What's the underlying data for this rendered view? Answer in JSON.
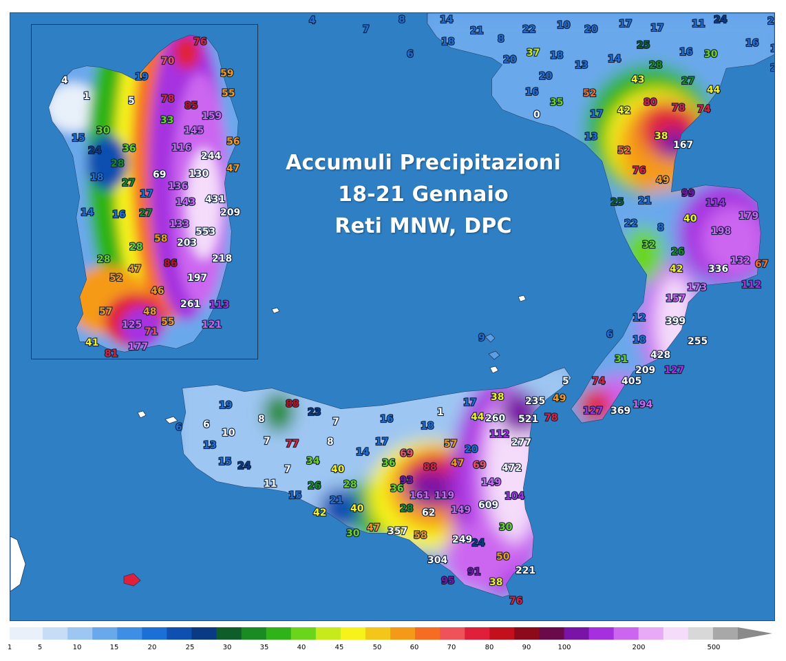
{
  "title": {
    "line1": "Accumuli Precipitazioni",
    "line2": "18-21 Gennaio",
    "line3": "Reti MNW, DPC"
  },
  "legend": {
    "ticks": [
      "1",
      "5",
      "10",
      "15",
      "20",
      "25",
      "30",
      "35",
      "40",
      "45",
      "50",
      "60",
      "70",
      "80",
      "90",
      "100",
      "200",
      "500"
    ]
  },
  "colors": {
    "sea": "#2f7fc4",
    "scale": [
      "#e8f0fa",
      "#c7dcf6",
      "#9ec6f2",
      "#6aa8ec",
      "#3f8ee6",
      "#1c6fd6",
      "#0f4fb0",
      "#0b3a85",
      "#0f5e2a",
      "#1a8a22",
      "#2fb318",
      "#6ad51a",
      "#c6ea1c",
      "#f6f21a",
      "#f5c61a",
      "#f59a18",
      "#f56c22",
      "#f0525a",
      "#e0203a",
      "#c2101c",
      "#8c0a1a",
      "#6a0a4a",
      "#7a14a6",
      "#a630e0",
      "#cc66f0",
      "#e8aaf6",
      "#f4dcfa",
      "#d8d8d8",
      "#a8a8a8"
    ]
  },
  "stations_main": [
    {
      "v": "4",
      "c": "#1c6fd6"
    },
    {
      "v": "7",
      "c": "#1c6fd6"
    },
    {
      "v": "8",
      "c": "#1c6fd6"
    },
    {
      "v": "14",
      "c": "#1c6fd6"
    },
    {
      "v": "21",
      "c": "#1c6fd6"
    },
    {
      "v": "18",
      "c": "#1c6fd6"
    },
    {
      "v": "6",
      "c": "#1c6fd6"
    },
    {
      "v": "8",
      "c": "#1c6fd6"
    },
    {
      "v": "22",
      "c": "#1c6fd6"
    },
    {
      "v": "10",
      "c": "#1c6fd6"
    },
    {
      "v": "17",
      "c": "#1c6fd6"
    },
    {
      "v": "20",
      "c": "#1c6fd6"
    },
    {
      "v": "17",
      "c": "#1c6fd6"
    },
    {
      "v": "11",
      "c": "#1c6fd6"
    },
    {
      "v": "24",
      "c": "#0b3a85"
    },
    {
      "v": "21",
      "c": "#1c6fd6"
    },
    {
      "v": "16",
      "c": "#1c6fd6"
    },
    {
      "v": "17",
      "c": "#1c6fd6"
    },
    {
      "v": "20",
      "c": "#1c6fd6"
    },
    {
      "v": "37",
      "c": "#c6ea1c"
    },
    {
      "v": "18",
      "c": "#1c6fd6"
    },
    {
      "v": "20",
      "c": "#1c6fd6"
    },
    {
      "v": "13",
      "c": "#1c6fd6"
    },
    {
      "v": "14",
      "c": "#1c6fd6"
    },
    {
      "v": "25",
      "c": "#0f5e2a"
    },
    {
      "v": "28",
      "c": "#1a8a22"
    },
    {
      "v": "16",
      "c": "#1c6fd6"
    },
    {
      "v": "30",
      "c": "#6ad51a"
    },
    {
      "v": "20",
      "c": "#1c6fd6"
    },
    {
      "v": "16",
      "c": "#1c6fd6"
    },
    {
      "v": "35",
      "c": "#6ad51a"
    },
    {
      "v": "0",
      "c": "#ffffff"
    },
    {
      "v": "52",
      "c": "#f56c22"
    },
    {
      "v": "43",
      "c": "#f6f21a"
    },
    {
      "v": "27",
      "c": "#1a8a22"
    },
    {
      "v": "44",
      "c": "#f6f21a"
    },
    {
      "v": "80",
      "c": "#e0203a"
    },
    {
      "v": "42",
      "c": "#f6f21a"
    },
    {
      "v": "78",
      "c": "#e0203a"
    },
    {
      "v": "74",
      "c": "#e0203a"
    },
    {
      "v": "17",
      "c": "#1c6fd6"
    },
    {
      "v": "13",
      "c": "#1c6fd6"
    },
    {
      "v": "38",
      "c": "#f6f21a"
    },
    {
      "v": "167",
      "c": "#ffffff"
    },
    {
      "v": "52",
      "c": "#f56c22"
    },
    {
      "v": "76",
      "c": "#e0203a"
    },
    {
      "v": "49",
      "c": "#f59a18"
    },
    {
      "v": "99",
      "c": "#7a14a6"
    },
    {
      "v": "114",
      "c": "#a630e0"
    },
    {
      "v": "25",
      "c": "#0f5e2a"
    },
    {
      "v": "21",
      "c": "#1c6fd6"
    },
    {
      "v": "40",
      "c": "#f6f21a"
    },
    {
      "v": "179",
      "c": "#cc66f0"
    },
    {
      "v": "22",
      "c": "#1c6fd6"
    },
    {
      "v": "8",
      "c": "#1c6fd6"
    },
    {
      "v": "198",
      "c": "#cc66f0"
    },
    {
      "v": "32",
      "c": "#6ad51a"
    },
    {
      "v": "26",
      "c": "#1a8a22"
    },
    {
      "v": "42",
      "c": "#f6f21a"
    },
    {
      "v": "336",
      "c": "#ffffff"
    },
    {
      "v": "132",
      "c": "#cc66f0"
    },
    {
      "v": "67",
      "c": "#f56c22"
    },
    {
      "v": "173",
      "c": "#cc66f0"
    },
    {
      "v": "112",
      "c": "#a630e0"
    },
    {
      "v": "157",
      "c": "#cc66f0"
    },
    {
      "v": "12",
      "c": "#1c6fd6"
    },
    {
      "v": "399",
      "c": "#ffffff"
    },
    {
      "v": "6",
      "c": "#1c6fd6"
    },
    {
      "v": "18",
      "c": "#1c6fd6"
    },
    {
      "v": "255",
      "c": "#ffffff"
    },
    {
      "v": "9",
      "c": "#1c6fd6"
    },
    {
      "v": "428",
      "c": "#ffffff"
    },
    {
      "v": "31",
      "c": "#6ad51a"
    },
    {
      "v": "209",
      "c": "#ffffff"
    },
    {
      "v": "127",
      "c": "#a630e0"
    },
    {
      "v": "5",
      "c": "#ffffff"
    },
    {
      "v": "74",
      "c": "#e0203a"
    },
    {
      "v": "405",
      "c": "#ffffff"
    },
    {
      "v": "127",
      "c": "#a630e0"
    },
    {
      "v": "369",
      "c": "#ffffff"
    },
    {
      "v": "194",
      "c": "#cc66f0"
    },
    {
      "v": "19",
      "c": "#1c6fd6"
    },
    {
      "v": "88",
      "c": "#c2101c"
    },
    {
      "v": "23",
      "c": "#0b3a85"
    },
    {
      "v": "1",
      "c": "#ffffff"
    },
    {
      "v": "17",
      "c": "#1c6fd6"
    },
    {
      "v": "38",
      "c": "#f6f21a"
    },
    {
      "v": "235",
      "c": "#ffffff"
    },
    {
      "v": "49",
      "c": "#f59a18"
    },
    {
      "v": "6",
      "c": "#1c6fd6"
    },
    {
      "v": "6",
      "c": "#ffffff"
    },
    {
      "v": "8",
      "c": "#ffffff"
    },
    {
      "v": "7",
      "c": "#ffffff"
    },
    {
      "v": "16",
      "c": "#1c6fd6"
    },
    {
      "v": "44",
      "c": "#f6f21a"
    },
    {
      "v": "260",
      "c": "#ffffff"
    },
    {
      "v": "521",
      "c": "#ffffff"
    },
    {
      "v": "78",
      "c": "#e0203a"
    },
    {
      "v": "10",
      "c": "#ffffff"
    },
    {
      "v": "18",
      "c": "#1c6fd6"
    },
    {
      "v": "112",
      "c": "#a630e0"
    },
    {
      "v": "13",
      "c": "#1c6fd6"
    },
    {
      "v": "7",
      "c": "#ffffff"
    },
    {
      "v": "77",
      "c": "#e0203a"
    },
    {
      "v": "8",
      "c": "#ffffff"
    },
    {
      "v": "17",
      "c": "#1c6fd6"
    },
    {
      "v": "57",
      "c": "#f59a18"
    },
    {
      "v": "277",
      "c": "#ffffff"
    },
    {
      "v": "20",
      "c": "#1c6fd6"
    },
    {
      "v": "14",
      "c": "#1c6fd6"
    },
    {
      "v": "69",
      "c": "#f0525a"
    },
    {
      "v": "15",
      "c": "#1c6fd6"
    },
    {
      "v": "24",
      "c": "#0b3a85"
    },
    {
      "v": "34",
      "c": "#6ad51a"
    },
    {
      "v": "36",
      "c": "#6ad51a"
    },
    {
      "v": "88",
      "c": "#e0203a"
    },
    {
      "v": "47",
      "c": "#f59a18"
    },
    {
      "v": "69",
      "c": "#f0525a"
    },
    {
      "v": "472",
      "c": "#ffffff"
    },
    {
      "v": "7",
      "c": "#ffffff"
    },
    {
      "v": "40",
      "c": "#f6f21a"
    },
    {
      "v": "93",
      "c": "#7a14a6"
    },
    {
      "v": "11",
      "c": "#ffffff"
    },
    {
      "v": "26",
      "c": "#1a8a22"
    },
    {
      "v": "28",
      "c": "#6ad51a"
    },
    {
      "v": "36",
      "c": "#6ad51a"
    },
    {
      "v": "149",
      "c": "#cc66f0"
    },
    {
      "v": "15",
      "c": "#1c6fd6"
    },
    {
      "v": "21",
      "c": "#1c6fd6"
    },
    {
      "v": "161",
      "c": "#cc66f0"
    },
    {
      "v": "119",
      "c": "#cc66f0"
    },
    {
      "v": "104",
      "c": "#a630e0"
    },
    {
      "v": "40",
      "c": "#f6f21a"
    },
    {
      "v": "28",
      "c": "#1a8a22"
    },
    {
      "v": "62",
      "c": "#ffffff"
    },
    {
      "v": "149",
      "c": "#cc66f0"
    },
    {
      "v": "609",
      "c": "#ffffff"
    },
    {
      "v": "42",
      "c": "#f6f21a"
    },
    {
      "v": "47",
      "c": "#f59a18"
    },
    {
      "v": "357",
      "c": "#ffffff"
    },
    {
      "v": "30",
      "c": "#6ad51a"
    },
    {
      "v": "30",
      "c": "#6ad51a"
    },
    {
      "v": "58",
      "c": "#f59a18"
    },
    {
      "v": "249",
      "c": "#ffffff"
    },
    {
      "v": "24",
      "c": "#0b3a85"
    },
    {
      "v": "304",
      "c": "#ffffff"
    },
    {
      "v": "50",
      "c": "#f59a18"
    },
    {
      "v": "221",
      "c": "#ffffff"
    },
    {
      "v": "91",
      "c": "#7a14a6"
    },
    {
      "v": "95",
      "c": "#7a14a6"
    },
    {
      "v": "38",
      "c": "#f6f21a"
    },
    {
      "v": "76",
      "c": "#e0203a"
    }
  ],
  "stations_inset": [
    {
      "v": "76",
      "c": "#e0203a"
    },
    {
      "v": "70",
      "c": "#f0525a"
    },
    {
      "v": "59",
      "c": "#f59a18"
    },
    {
      "v": "19",
      "c": "#1c6fd6"
    },
    {
      "v": "55",
      "c": "#f59a18"
    },
    {
      "v": "4",
      "c": "#ffffff"
    },
    {
      "v": "78",
      "c": "#e0203a"
    },
    {
      "v": "85",
      "c": "#c2101c"
    },
    {
      "v": "1",
      "c": "#ffffff"
    },
    {
      "v": "5",
      "c": "#ffffff"
    },
    {
      "v": "159",
      "c": "#cc66f0"
    },
    {
      "v": "33",
      "c": "#6ad51a"
    },
    {
      "v": "30",
      "c": "#6ad51a"
    },
    {
      "v": "145",
      "c": "#cc66f0"
    },
    {
      "v": "15",
      "c": "#1c6fd6"
    },
    {
      "v": "56",
      "c": "#f59a18"
    },
    {
      "v": "36",
      "c": "#6ad51a"
    },
    {
      "v": "116",
      "c": "#cc66f0"
    },
    {
      "v": "24",
      "c": "#0b3a85"
    },
    {
      "v": "244",
      "c": "#ffffff"
    },
    {
      "v": "28",
      "c": "#1a8a22"
    },
    {
      "v": "47",
      "c": "#f59a18"
    },
    {
      "v": "69",
      "c": "#ffffff"
    },
    {
      "v": "130",
      "c": "#ffffff"
    },
    {
      "v": "18",
      "c": "#1c6fd6"
    },
    {
      "v": "27",
      "c": "#1a8a22"
    },
    {
      "v": "136",
      "c": "#cc66f0"
    },
    {
      "v": "17",
      "c": "#1c6fd6"
    },
    {
      "v": "143",
      "c": "#cc66f0"
    },
    {
      "v": "431",
      "c": "#ffffff"
    },
    {
      "v": "14",
      "c": "#1c6fd6"
    },
    {
      "v": "16",
      "c": "#1c6fd6"
    },
    {
      "v": "27",
      "c": "#1a8a22"
    },
    {
      "v": "209",
      "c": "#ffffff"
    },
    {
      "v": "133",
      "c": "#cc66f0"
    },
    {
      "v": "553",
      "c": "#ffffff"
    },
    {
      "v": "58",
      "c": "#f59a18"
    },
    {
      "v": "203",
      "c": "#ffffff"
    },
    {
      "v": "28",
      "c": "#6ad51a"
    },
    {
      "v": "28",
      "c": "#6ad51a"
    },
    {
      "v": "86",
      "c": "#c2101c"
    },
    {
      "v": "218",
      "c": "#ffffff"
    },
    {
      "v": "47",
      "c": "#f59a18"
    },
    {
      "v": "52",
      "c": "#f59a18"
    },
    {
      "v": "197",
      "c": "#ffffff"
    },
    {
      "v": "46",
      "c": "#f59a18"
    },
    {
      "v": "261",
      "c": "#ffffff"
    },
    {
      "v": "113",
      "c": "#a630e0"
    },
    {
      "v": "57",
      "c": "#f59a18"
    },
    {
      "v": "48",
      "c": "#f59a18"
    },
    {
      "v": "55",
      "c": "#f59a18"
    },
    {
      "v": "121",
      "c": "#cc66f0"
    },
    {
      "v": "125",
      "c": "#cc66f0"
    },
    {
      "v": "71",
      "c": "#f0525a"
    },
    {
      "v": "41",
      "c": "#f6f21a"
    },
    {
      "v": "177",
      "c": "#cc66f0"
    },
    {
      "v": "81",
      "c": "#e0203a"
    }
  ]
}
